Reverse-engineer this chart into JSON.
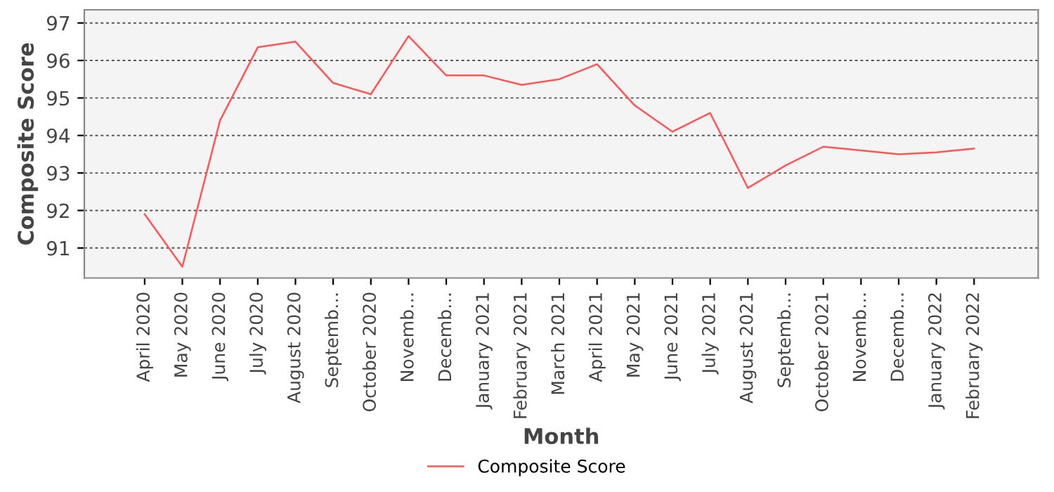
{
  "chart_data": {
    "type": "line",
    "xlabel": "Month",
    "ylabel": "Composite Score",
    "categories": [
      "April 2020",
      "May 2020",
      "June 2020",
      "July 2020",
      "August 2020",
      "Septemb…",
      "October 2020",
      "Novemb…",
      "Decemb…",
      "January 2021",
      "February 2021",
      "March 2021",
      "April 2021",
      "May 2021",
      "June 2021",
      "July 2021",
      "August 2021",
      "Septemb…",
      "October 2021",
      "Novemb…",
      "Decemb…",
      "January 2022",
      "February 2022"
    ],
    "series": [
      {
        "name": "Composite Score",
        "color": "#ff5555",
        "values": [
          91.9,
          90.5,
          94.4,
          96.35,
          96.5,
          95.4,
          95.1,
          96.65,
          95.6,
          95.6,
          95.35,
          95.5,
          95.9,
          94.8,
          94.1,
          94.6,
          92.6,
          93.2,
          93.7,
          93.6,
          93.5,
          93.55,
          93.65
        ]
      }
    ],
    "ylim": [
      90.2,
      97.35
    ],
    "yticks": [
      91,
      92,
      93,
      94,
      95,
      96,
      97
    ],
    "grid": "y",
    "legend": "bottom",
    "marker": "none",
    "line_style": "solid"
  }
}
